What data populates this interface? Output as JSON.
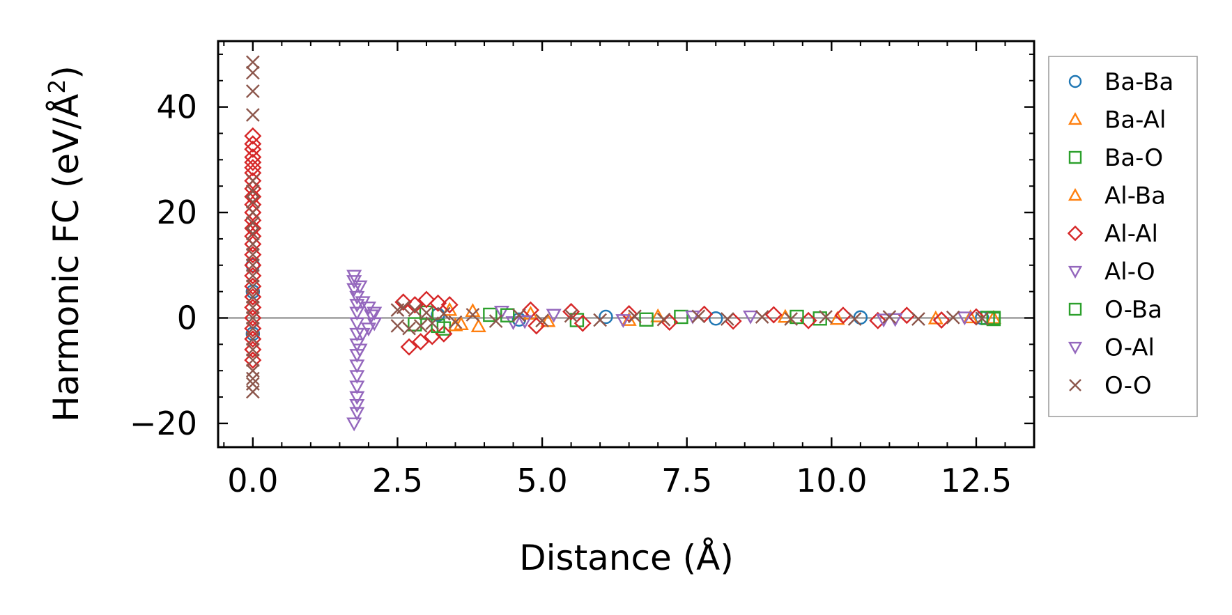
{
  "chart_data": {
    "type": "scatter",
    "title": "",
    "xlabel": "Distance (Å)",
    "ylabel_main": "Harmonic FC (eV/Å",
    "ylabel_sup": "2",
    "ylabel_tail": ")",
    "xlim": [
      -0.6,
      13.5
    ],
    "ylim": [
      -24.5,
      52.5
    ],
    "xticks": [
      0.0,
      2.5,
      5.0,
      7.5,
      10.0,
      12.5
    ],
    "xtick_labels": [
      "0.0",
      "2.5",
      "5.0",
      "7.5",
      "10.0",
      "12.5"
    ],
    "yticks": [
      -20,
      0,
      20,
      40
    ],
    "ytick_labels": [
      "−20",
      "0",
      "20",
      "40"
    ],
    "zero_line": 0,
    "legend_position": "outside-right",
    "series": [
      {
        "name": "Ba-Ba",
        "marker": "circle",
        "color": "#1f77b4",
        "points": [
          [
            0.0,
            10.0
          ],
          [
            0.0,
            5.0
          ],
          [
            0.0,
            -3.0
          ],
          [
            3.2,
            0.6
          ],
          [
            4.6,
            -0.3
          ],
          [
            6.1,
            0.2
          ],
          [
            8.0,
            -0.1
          ],
          [
            10.5,
            0.1
          ],
          [
            12.6,
            0.0
          ]
        ]
      },
      {
        "name": "Ba-Al",
        "marker": "triangle-up",
        "color": "#ff7f0e",
        "points": [
          [
            3.4,
            1.5
          ],
          [
            3.6,
            -1.2
          ],
          [
            3.9,
            -1.6
          ],
          [
            4.8,
            0.8
          ],
          [
            6.5,
            -0.4
          ],
          [
            9.2,
            0.2
          ],
          [
            11.8,
            -0.1
          ],
          [
            12.8,
            0.0
          ]
        ]
      },
      {
        "name": "Ba-O",
        "marker": "square",
        "color": "#2ca02c",
        "points": [
          [
            2.8,
            -1.2
          ],
          [
            3.0,
            1.0
          ],
          [
            3.3,
            -2.0
          ],
          [
            4.1,
            0.6
          ],
          [
            5.6,
            -0.4
          ],
          [
            7.4,
            0.2
          ],
          [
            9.8,
            -0.1
          ],
          [
            12.7,
            0.0
          ],
          [
            12.8,
            0.0
          ]
        ]
      },
      {
        "name": "Al-Ba",
        "marker": "triangle-up",
        "color": "#ff7f0e",
        "points": [
          [
            3.5,
            -1.4
          ],
          [
            3.8,
            1.3
          ],
          [
            5.1,
            -0.6
          ],
          [
            7.0,
            0.3
          ],
          [
            10.1,
            -0.2
          ],
          [
            12.4,
            0.1
          ]
        ]
      },
      {
        "name": "Al-Al",
        "marker": "diamond",
        "color": "#d62728",
        "points": [
          [
            0.0,
            34.5
          ],
          [
            0.0,
            33.0
          ],
          [
            0.0,
            32.0
          ],
          [
            0.0,
            30.5
          ],
          [
            0.0,
            29.5
          ],
          [
            0.0,
            28.5
          ],
          [
            0.0,
            27.5
          ],
          [
            0.0,
            26.0
          ],
          [
            0.0,
            24.5
          ],
          [
            0.0,
            23.0
          ],
          [
            0.0,
            21.5
          ],
          [
            0.0,
            20.0
          ],
          [
            0.0,
            18.5
          ],
          [
            0.0,
            17.0
          ],
          [
            0.0,
            15.5
          ],
          [
            0.0,
            14.0
          ],
          [
            0.0,
            12.0
          ],
          [
            0.0,
            10.0
          ],
          [
            0.0,
            8.0
          ],
          [
            0.0,
            6.0
          ],
          [
            0.0,
            4.0
          ],
          [
            0.0,
            2.0
          ],
          [
            0.0,
            0.0
          ],
          [
            0.0,
            -2.0
          ],
          [
            0.0,
            -4.0
          ],
          [
            0.0,
            -6.0
          ],
          [
            0.0,
            -8.0
          ],
          [
            2.6,
            3.0
          ],
          [
            2.7,
            -5.5
          ],
          [
            2.8,
            2.5
          ],
          [
            2.9,
            -4.5
          ],
          [
            3.0,
            3.5
          ],
          [
            3.1,
            -3.5
          ],
          [
            3.2,
            2.8
          ],
          [
            3.3,
            -3.0
          ],
          [
            3.4,
            2.5
          ],
          [
            4.8,
            1.5
          ],
          [
            4.9,
            -1.5
          ],
          [
            5.5,
            1.2
          ],
          [
            5.7,
            -1.0
          ],
          [
            6.5,
            0.8
          ],
          [
            7.2,
            -0.8
          ],
          [
            7.8,
            0.7
          ],
          [
            8.3,
            -0.6
          ],
          [
            9.0,
            0.6
          ],
          [
            9.6,
            -0.5
          ],
          [
            10.2,
            0.5
          ],
          [
            10.8,
            -0.5
          ],
          [
            11.3,
            0.5
          ],
          [
            11.9,
            -0.4
          ],
          [
            12.5,
            0.2
          ]
        ]
      },
      {
        "name": "Al-O",
        "marker": "triangle-down",
        "color": "#9467bd",
        "points": [
          [
            1.75,
            8.0
          ],
          [
            1.75,
            7.0
          ],
          [
            1.75,
            5.5
          ],
          [
            1.8,
            4.0
          ],
          [
            1.8,
            2.5
          ],
          [
            1.8,
            1.0
          ],
          [
            1.8,
            -1.0
          ],
          [
            1.8,
            -3.0
          ],
          [
            1.8,
            -5.0
          ],
          [
            1.8,
            -7.0
          ],
          [
            1.8,
            -9.0
          ],
          [
            1.8,
            -11.0
          ],
          [
            1.8,
            -13.0
          ],
          [
            1.8,
            -15.0
          ],
          [
            1.8,
            -16.5
          ],
          [
            1.8,
            -18.0
          ],
          [
            1.75,
            -20.0
          ],
          [
            1.9,
            3.0
          ],
          [
            1.9,
            -3.0
          ],
          [
            2.0,
            2.0
          ],
          [
            2.0,
            -2.0
          ],
          [
            2.1,
            1.0
          ],
          [
            2.1,
            -1.0
          ],
          [
            4.3,
            1.2
          ],
          [
            4.5,
            -0.8
          ],
          [
            5.2,
            0.6
          ],
          [
            6.4,
            -0.4
          ],
          [
            8.6,
            0.3
          ],
          [
            10.9,
            -0.3
          ],
          [
            12.3,
            0.1
          ]
        ]
      },
      {
        "name": "O-Ba",
        "marker": "square",
        "color": "#2ca02c",
        "points": [
          [
            3.2,
            -1.5
          ],
          [
            4.4,
            0.5
          ],
          [
            6.8,
            -0.3
          ],
          [
            9.4,
            0.2
          ],
          [
            12.8,
            -0.2
          ]
        ]
      },
      {
        "name": "O-Al",
        "marker": "triangle-down",
        "color": "#9467bd",
        "points": [
          [
            1.85,
            -6.0
          ],
          [
            1.85,
            6.0
          ],
          [
            2.05,
            0.5
          ],
          [
            4.7,
            -0.6
          ],
          [
            7.6,
            0.3
          ],
          [
            11.1,
            -0.2
          ]
        ]
      },
      {
        "name": "O-O",
        "marker": "x",
        "color": "#8c564b",
        "points": [
          [
            0.0,
            48.5
          ],
          [
            0.0,
            46.5
          ],
          [
            0.0,
            43.0
          ],
          [
            0.0,
            38.5
          ],
          [
            0.0,
            26.0
          ],
          [
            0.0,
            24.0
          ],
          [
            0.0,
            22.0
          ],
          [
            0.0,
            20.0
          ],
          [
            0.0,
            18.0
          ],
          [
            0.0,
            16.0
          ],
          [
            0.0,
            14.0
          ],
          [
            0.0,
            12.0
          ],
          [
            0.0,
            10.0
          ],
          [
            0.0,
            8.0
          ],
          [
            0.0,
            6.0
          ],
          [
            0.0,
            4.0
          ],
          [
            0.0,
            2.0
          ],
          [
            0.0,
            0.0
          ],
          [
            0.0,
            -2.0
          ],
          [
            0.0,
            -4.0
          ],
          [
            0.0,
            -6.0
          ],
          [
            0.0,
            -8.0
          ],
          [
            0.0,
            -10.0
          ],
          [
            0.0,
            -11.5
          ],
          [
            0.0,
            -12.5
          ],
          [
            0.0,
            -14.0
          ],
          [
            2.5,
            1.5
          ],
          [
            2.5,
            -1.5
          ],
          [
            2.6,
            2.0
          ],
          [
            2.7,
            -2.0
          ],
          [
            2.8,
            1.5
          ],
          [
            2.9,
            -1.5
          ],
          [
            3.0,
            1.0
          ],
          [
            3.1,
            -1.0
          ],
          [
            3.3,
            0.8
          ],
          [
            3.5,
            -0.8
          ],
          [
            3.8,
            0.6
          ],
          [
            4.2,
            -0.6
          ],
          [
            4.6,
            0.5
          ],
          [
            5.0,
            -0.5
          ],
          [
            5.5,
            0.4
          ],
          [
            6.0,
            -0.4
          ],
          [
            6.6,
            0.3
          ],
          [
            7.1,
            -0.3
          ],
          [
            7.7,
            0.3
          ],
          [
            8.2,
            -0.2
          ],
          [
            8.8,
            0.2
          ],
          [
            9.3,
            -0.2
          ],
          [
            9.9,
            0.2
          ],
          [
            10.4,
            -0.2
          ],
          [
            11.0,
            0.2
          ],
          [
            11.5,
            -0.2
          ],
          [
            12.1,
            0.1
          ],
          [
            12.6,
            -0.1
          ]
        ]
      }
    ]
  }
}
